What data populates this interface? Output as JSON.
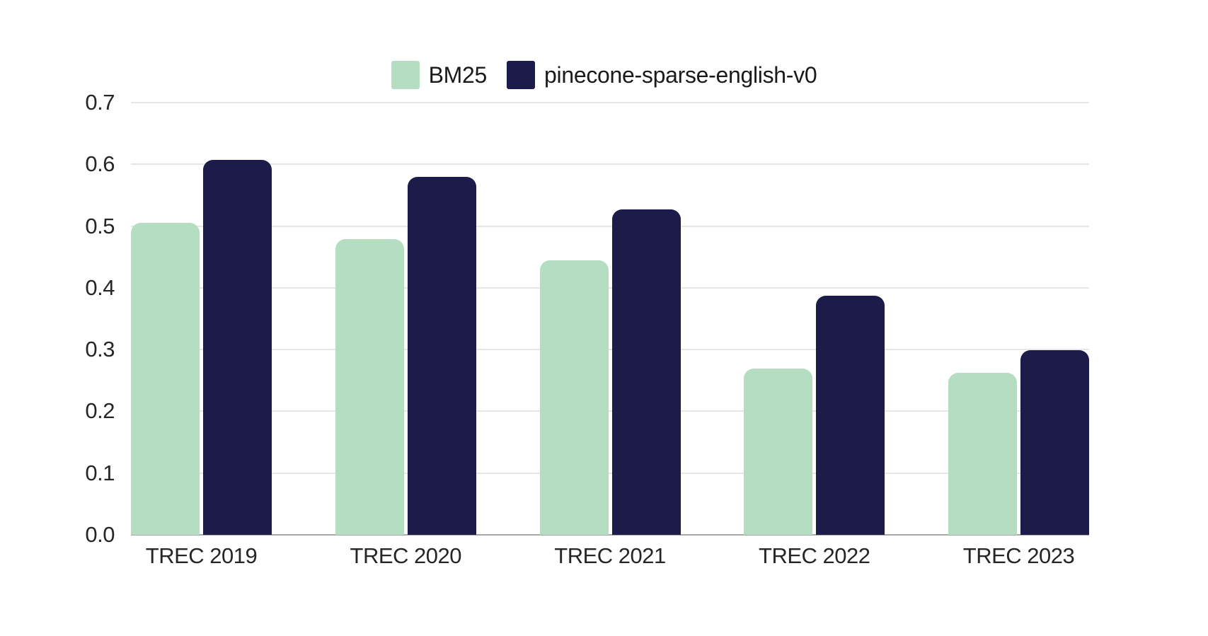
{
  "colors": {
    "background": "#ffffff",
    "bm25_green": "#b4ddc2",
    "pinecone_navy": "#1c1b4a",
    "gridline": "#e6e6e6",
    "axis_line": "#a8a8a8",
    "label_text": "#262626"
  },
  "chart_data": {
    "type": "bar",
    "title": "",
    "xlabel": "",
    "ylabel": "",
    "categories": [
      "TREC 2019",
      "TREC 2020",
      "TREC 2021",
      "TREC 2022",
      "TREC 2023"
    ],
    "series": [
      {
        "name": "BM25",
        "color": "#b4ddc2",
        "values": [
          0.505,
          0.479,
          0.445,
          0.269,
          0.262
        ]
      },
      {
        "name": "pinecone-sparse-english-v0",
        "color": "#1c1b4a",
        "values": [
          0.607,
          0.58,
          0.527,
          0.387,
          0.299
        ]
      }
    ],
    "ylim": [
      0.0,
      0.7
    ],
    "y_ticks": [
      "0.0",
      "0.1",
      "0.2",
      "0.3",
      "0.4",
      "0.5",
      "0.6",
      "0.7"
    ],
    "grid": true,
    "legend_position": "top-center"
  }
}
